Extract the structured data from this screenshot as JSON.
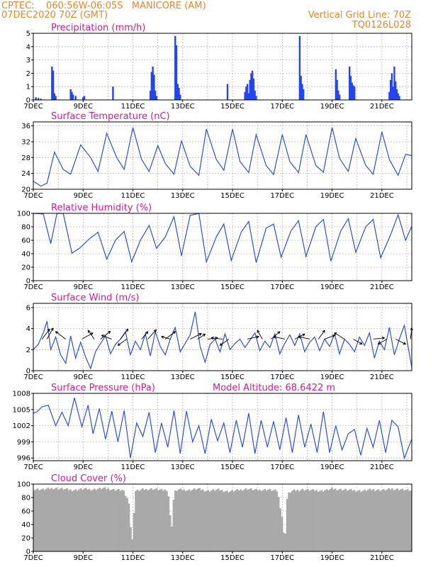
{
  "header": {
    "line1_left": "CPTEC:    060:56W-06:05S   MANICORE (AM)",
    "line2_left": "07DEC2020 70Z (GMT)",
    "line1_right": "Vertical Grid Line: 70Z",
    "line2_right": "TQ0126L028"
  },
  "x_tick_labels": [
    "7DEC",
    "9DEC",
    "11DEC",
    "13DEC",
    "15DEC",
    "17DEC",
    "19DEC",
    "21DEC"
  ],
  "x_range_days": [
    7,
    22.2
  ],
  "chart_data": [
    {
      "id": "precip",
      "type": "bar",
      "title": "Precipitation (mm/h)",
      "ylim": [
        0,
        5
      ],
      "yticks": [
        0,
        1,
        2,
        3,
        4,
        5
      ],
      "grid": true,
      "series": [
        {
          "x": [
            7.1,
            7.2,
            7.3,
            7.75,
            7.8,
            7.85,
            7.9,
            8.5,
            8.55,
            8.6,
            8.7,
            9.0,
            9.05,
            10.2,
            11.7,
            11.75,
            11.8,
            11.85,
            11.9,
            11.95,
            12.7,
            12.75,
            12.8,
            12.85,
            12.9,
            14.8,
            15.5,
            15.55,
            15.6,
            15.65,
            15.7,
            15.75,
            15.8,
            15.85,
            15.9,
            15.95,
            17.7,
            17.75,
            17.8,
            17.85,
            19.15,
            19.2,
            19.25,
            19.3,
            19.7,
            19.75,
            19.8,
            19.85,
            19.9,
            21.3,
            21.35,
            21.4,
            21.45,
            21.5,
            21.55,
            21.6,
            21.65,
            21.7
          ],
          "values": [
            0.2,
            0.15,
            0.1,
            2.5,
            2.2,
            0.5,
            0.3,
            0.8,
            0.6,
            0.4,
            0.3,
            0.2,
            0.3,
            1.0,
            0.7,
            2.1,
            2.5,
            1.9,
            0.7,
            0.3,
            4.8,
            4.1,
            1.2,
            0.9,
            0.4,
            1.2,
            0.6,
            1.0,
            1.2,
            0.5,
            1.5,
            2.0,
            2.2,
            1.6,
            0.7,
            0.3,
            4.8,
            1.8,
            1.2,
            0.8,
            2.3,
            1.5,
            0.7,
            0.4,
            2.5,
            1.8,
            1.3,
            1.1,
            1.0,
            0.6,
            1.5,
            2.0,
            1.0,
            2.5,
            1.4,
            0.8,
            0.5,
            0.3
          ]
        }
      ]
    },
    {
      "id": "temp",
      "type": "line",
      "title": "Surface Temperature (nC)",
      "ylim": [
        20,
        37
      ],
      "yticks": [
        20,
        24,
        28,
        32,
        36
      ],
      "grid": true,
      "series": [
        {
          "x": [
            7.0,
            7.3,
            7.55,
            7.85,
            8.2,
            8.5,
            8.9,
            9.3,
            9.6,
            9.95,
            10.35,
            10.65,
            11.0,
            11.35,
            11.65,
            12.0,
            12.3,
            12.65,
            12.95,
            13.3,
            13.65,
            13.95,
            14.35,
            14.65,
            15.0,
            15.3,
            15.65,
            15.95,
            16.35,
            16.65,
            17.0,
            17.3,
            17.65,
            17.95,
            18.35,
            18.65,
            19.0,
            19.3,
            19.65,
            19.95,
            20.35,
            20.65,
            21.0,
            21.3,
            21.65,
            21.95,
            22.2
          ],
          "values": [
            22,
            20.8,
            21.5,
            29.4,
            25.0,
            23.8,
            31.2,
            28.0,
            24.5,
            34.1,
            28.0,
            25.0,
            35.6,
            27.5,
            24.5,
            31.0,
            26.5,
            23.8,
            32.2,
            25.8,
            23.5,
            35.2,
            27.5,
            24.8,
            35.2,
            27.0,
            24.2,
            33.8,
            26.0,
            23.7,
            33.8,
            27.0,
            24.2,
            33.8,
            26.0,
            24.3,
            35.6,
            27.8,
            24.5,
            32.8,
            26.0,
            23.8,
            34.5,
            27.5,
            23.5,
            28.8,
            28.5
          ]
        }
      ]
    },
    {
      "id": "rh",
      "type": "line",
      "title": "Relative Humidity (%)",
      "ylim": [
        0,
        100
      ],
      "yticks": [
        0,
        20,
        40,
        60,
        80,
        100
      ],
      "grid": true,
      "series": [
        {
          "x": [
            7.0,
            7.4,
            7.7,
            7.95,
            8.2,
            8.55,
            8.85,
            9.25,
            9.6,
            9.95,
            10.3,
            10.65,
            10.95,
            11.3,
            11.65,
            11.95,
            12.3,
            12.65,
            12.95,
            13.3,
            13.65,
            13.95,
            14.35,
            14.65,
            14.95,
            15.35,
            15.65,
            15.95,
            16.35,
            16.65,
            16.95,
            17.35,
            17.65,
            17.95,
            18.35,
            18.65,
            18.95,
            19.35,
            19.65,
            19.95,
            20.35,
            20.65,
            20.95,
            21.35,
            21.65,
            21.95,
            22.2
          ],
          "values": [
            100,
            99,
            55,
            100,
            100,
            41,
            48,
            62,
            72,
            32,
            60,
            73,
            28,
            60,
            82,
            48,
            65,
            95,
            37,
            97,
            100,
            28,
            65,
            84,
            30,
            72,
            88,
            27,
            78,
            84,
            35,
            74,
            89,
            36,
            80,
            91,
            29,
            74,
            92,
            42,
            80,
            91,
            34,
            68,
            98,
            60,
            81
          ]
        }
      ]
    },
    {
      "id": "wind",
      "type": "line",
      "title": "Surface Wind (m/s)",
      "ylim": [
        0,
        6.4
      ],
      "yticks": [
        0,
        2,
        4,
        6
      ],
      "grid": true,
      "series": [
        {
          "x": [
            7.0,
            7.2,
            7.4,
            7.55,
            7.7,
            7.9,
            8.1,
            8.3,
            8.5,
            8.7,
            8.9,
            9.1,
            9.3,
            9.5,
            9.7,
            9.9,
            10.1,
            10.3,
            10.5,
            10.7,
            10.9,
            11.1,
            11.3,
            11.5,
            11.7,
            11.9,
            12.1,
            12.3,
            12.5,
            12.7,
            12.9,
            13.1,
            13.3,
            13.5,
            13.7,
            13.9,
            14.1,
            14.3,
            14.5,
            14.7,
            14.9,
            15.1,
            15.3,
            15.5,
            15.7,
            15.9,
            16.1,
            16.3,
            16.5,
            16.7,
            16.9,
            17.1,
            17.3,
            17.5,
            17.7,
            17.9,
            18.1,
            18.3,
            18.5,
            18.7,
            18.9,
            19.1,
            19.3,
            19.5,
            19.7,
            19.9,
            20.1,
            20.3,
            20.5,
            20.7,
            20.9,
            21.1,
            21.3,
            21.5,
            21.7,
            21.9,
            22.2
          ],
          "values": [
            2.0,
            2.5,
            3.6,
            4.7,
            2.0,
            3.2,
            1.5,
            0.7,
            3.3,
            1.2,
            2.7,
            1.3,
            0.2,
            1.8,
            2.6,
            3.3,
            1.6,
            2.5,
            3.0,
            3.7,
            1.5,
            2.8,
            2.0,
            3.5,
            1.4,
            3.7,
            2.3,
            1.5,
            3.0,
            4.1,
            1.8,
            2.6,
            3.4,
            5.6,
            2.3,
            0.8,
            2.5,
            3.0,
            1.8,
            3.5,
            2.0,
            2.6,
            3.0,
            2.2,
            2.9,
            3.6,
            1.9,
            2.8,
            2.2,
            3.5,
            1.6,
            2.6,
            3.4,
            2.4,
            3.5,
            1.8,
            2.7,
            3.2,
            1.9,
            3.0,
            2.3,
            3.5,
            1.6,
            3.0,
            2.5,
            1.8,
            3.2,
            2.4,
            3.6,
            1.2,
            2.8,
            2.0,
            4.1,
            1.5,
            3.0,
            4.3,
            0.3
          ]
        }
      ],
      "vectors": [
        {
          "x": 7.35,
          "u": 0.9,
          "v": 1.2
        },
        {
          "x": 7.55,
          "u": 0.5,
          "v": 0.9
        },
        {
          "x": 8.3,
          "u": -0.8,
          "v": 0.6
        },
        {
          "x": 8.95,
          "u": 0.9,
          "v": 0.5
        },
        {
          "x": 9.45,
          "u": -0.5,
          "v": 0.7
        },
        {
          "x": 9.7,
          "u": 1.0,
          "v": 0.8
        },
        {
          "x": 10.15,
          "u": -0.8,
          "v": 0.3
        },
        {
          "x": 10.5,
          "u": 0.6,
          "v": 0.8
        },
        {
          "x": 10.75,
          "u": -0.7,
          "v": -0.5
        },
        {
          "x": 11.35,
          "u": 0.5,
          "v": 0.6
        },
        {
          "x": 11.6,
          "u": 0.8,
          "v": 0.9
        },
        {
          "x": 12.3,
          "u": 0.8,
          "v": 0.6
        },
        {
          "x": 12.5,
          "u": -0.7,
          "v": 0.2
        },
        {
          "x": 13.3,
          "u": 1.2,
          "v": 0.6
        },
        {
          "x": 13.6,
          "u": 0.6,
          "v": 0.4
        },
        {
          "x": 14.0,
          "u": 0.8,
          "v": 0.1
        },
        {
          "x": 14.6,
          "u": -0.9,
          "v": 0.1
        },
        {
          "x": 14.85,
          "u": -0.7,
          "v": -0.5
        },
        {
          "x": 15.6,
          "u": 0.9,
          "v": 0.2
        },
        {
          "x": 16.2,
          "u": -0.4,
          "v": 0.7
        },
        {
          "x": 16.55,
          "u": 0.7,
          "v": 0.6
        },
        {
          "x": 17.1,
          "u": -0.9,
          "v": 0.2
        },
        {
          "x": 17.5,
          "u": 0.8,
          "v": 0.4
        },
        {
          "x": 18.1,
          "u": -0.9,
          "v": 0.2
        },
        {
          "x": 18.45,
          "u": 0.5,
          "v": 0.7
        },
        {
          "x": 18.7,
          "u": 0.8,
          "v": 0.3
        },
        {
          "x": 19.5,
          "u": -0.8,
          "v": 0.5
        },
        {
          "x": 19.85,
          "u": 0.7,
          "v": -0.4
        },
        {
          "x": 20.65,
          "u": 0.9,
          "v": 0.1
        },
        {
          "x": 21.2,
          "u": -0.7,
          "v": -0.4
        },
        {
          "x": 21.55,
          "u": 0.8,
          "v": -0.4
        },
        {
          "x": 22.15,
          "u": 0.1,
          "v": 0.9
        }
      ]
    },
    {
      "id": "pressure",
      "type": "line",
      "title": "Surface Pressure (hPa)",
      "annotation": "Model Altitude: 68.6422 m",
      "ylim": [
        995.5,
        1008
      ],
      "yticks": [
        996,
        999,
        1002,
        1005,
        1008
      ],
      "grid": true,
      "series": [
        {
          "x": [
            7.0,
            7.15,
            7.35,
            7.6,
            7.9,
            8.15,
            8.4,
            8.65,
            8.95,
            9.2,
            9.4,
            9.65,
            9.9,
            10.15,
            10.4,
            10.65,
            10.9,
            11.15,
            11.4,
            11.65,
            11.9,
            12.15,
            12.4,
            12.65,
            12.9,
            13.15,
            13.4,
            13.65,
            13.9,
            14.15,
            14.4,
            14.65,
            14.9,
            15.15,
            15.4,
            15.65,
            15.9,
            16.15,
            16.4,
            16.65,
            16.9,
            17.15,
            17.4,
            17.65,
            17.9,
            18.15,
            18.4,
            18.65,
            18.9,
            19.15,
            19.4,
            19.65,
            19.9,
            20.15,
            20.4,
            20.65,
            20.9,
            21.15,
            21.4,
            21.65,
            21.9,
            22.2
          ],
          "values": [
            1004.3,
            1004.6,
            1005.5,
            1005.8,
            1002.0,
            1004.5,
            1002.0,
            1007.2,
            1001.8,
            1005.8,
            1000.5,
            1005.2,
            999.5,
            1004.7,
            999.0,
            1004.8,
            996.0,
            1002.5,
            1000.0,
            1004.5,
            997.0,
            1002.5,
            998.0,
            1004.8,
            996.8,
            1004.7,
            999.0,
            1002.0,
            996.8,
            1003.2,
            999.2,
            1002.5,
            997.0,
            1003.0,
            998.0,
            1004.3,
            996.8,
            1003.0,
            998.0,
            1002.8,
            997.5,
            1003.5,
            997.0,
            1004.0,
            998.0,
            1002.3,
            997.0,
            1004.6,
            997.0,
            1002.0,
            997.5,
            1000.5,
            1001.3,
            996.5,
            1001.5,
            998.0,
            1003.0,
            997.0,
            1003.0,
            1001.8,
            996.0,
            999.5
          ]
        }
      ]
    },
    {
      "id": "cloud",
      "type": "area",
      "title": "Cloud Cover (%)",
      "ylim": [
        0,
        100
      ],
      "yticks": [
        0,
        20,
        40,
        60,
        80,
        100
      ],
      "grid": true,
      "series": [
        {
          "x": [
            7.0,
            7.4,
            7.8,
            8.2,
            8.6,
            9.0,
            9.4,
            9.8,
            10.2,
            10.6,
            10.85,
            10.95,
            11.1,
            11.4,
            11.8,
            12.2,
            12.4,
            12.55,
            12.65,
            12.8,
            13.2,
            13.6,
            14.0,
            14.4,
            14.8,
            15.2,
            15.6,
            16.0,
            16.4,
            16.8,
            17.0,
            17.1,
            17.2,
            17.4,
            17.8,
            18.2,
            18.6,
            19.0,
            19.4,
            19.8,
            20.2,
            20.6,
            21.0,
            21.4,
            21.8,
            22.2
          ],
          "values": [
            93,
            92,
            94,
            93,
            91,
            93,
            92,
            94,
            92,
            91,
            72,
            5,
            90,
            92,
            93,
            91,
            92,
            30,
            88,
            92,
            91,
            93,
            90,
            92,
            89,
            91,
            93,
            91,
            92,
            90,
            48,
            10,
            85,
            90,
            92,
            91,
            90,
            93,
            92,
            91,
            90,
            92,
            91,
            93,
            92,
            90
          ]
        }
      ]
    }
  ]
}
